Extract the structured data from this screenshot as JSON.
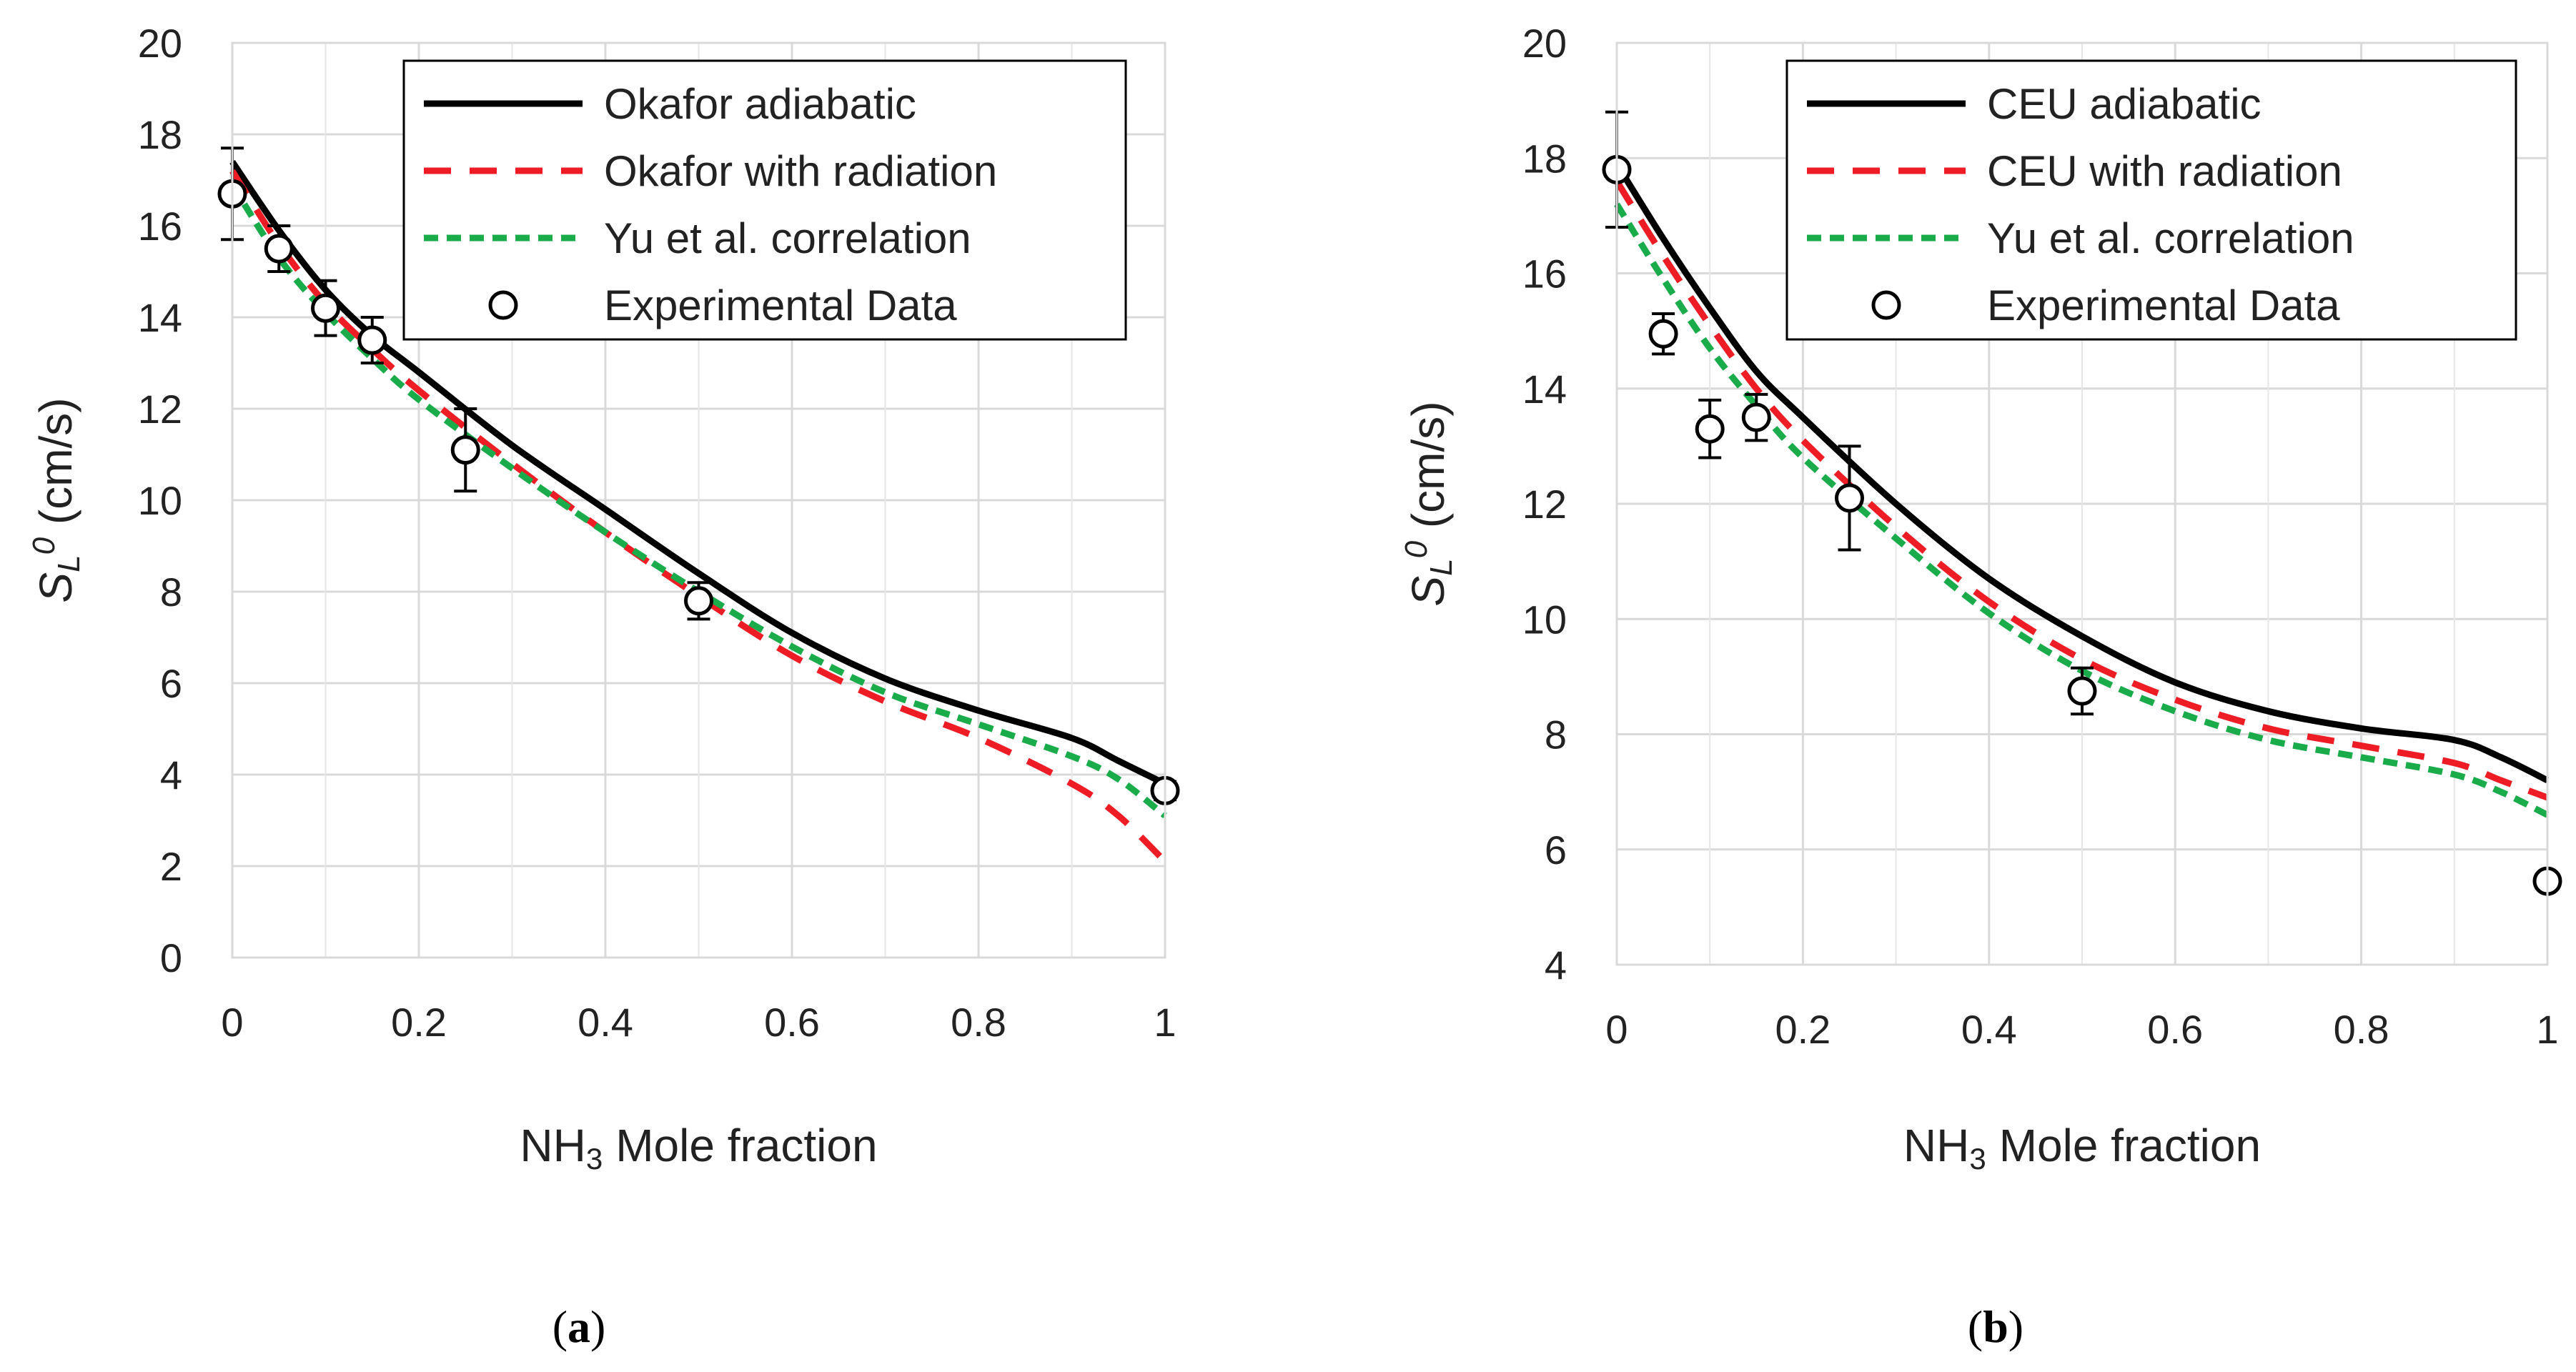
{
  "chart_data": [
    {
      "id": "a",
      "type": "line",
      "caption_open": "(",
      "caption_letter": "a",
      "caption_close": ")",
      "xlabel": "Mole fraction",
      "xlabel_prefix": "NH",
      "xlabel_sub": "3",
      "ylabel_main": "S",
      "ylabel_sub": "L",
      "ylabel_sup": "0",
      "ylabel_unit": " (cm/s)",
      "xlim": [
        0,
        1
      ],
      "ylim": [
        0,
        20
      ],
      "xticks": [
        0,
        0.2,
        0.4,
        0.6,
        0.8,
        1
      ],
      "xtick_labels": [
        "0",
        "0.2",
        "0.4",
        "0.6",
        "0.8",
        "1"
      ],
      "yticks": [
        0,
        2,
        4,
        6,
        8,
        10,
        12,
        14,
        16,
        18,
        20
      ],
      "ytick_labels": [
        "0",
        "2",
        "4",
        "6",
        "8",
        "10",
        "12",
        "14",
        "16",
        "18",
        "20"
      ],
      "grid": true,
      "legend_position": "top-right",
      "series": [
        {
          "name": "Okafor adiabatic",
          "style": "solid",
          "color": "#000000",
          "x": [
            0,
            0.05,
            0.1,
            0.15,
            0.2,
            0.3,
            0.4,
            0.5,
            0.6,
            0.7,
            0.8,
            0.9,
            0.95,
            1.0
          ],
          "y": [
            17.4,
            15.9,
            14.6,
            13.6,
            12.8,
            11.2,
            9.8,
            8.4,
            7.1,
            6.1,
            5.4,
            4.8,
            4.3,
            3.8
          ]
        },
        {
          "name": "Okafor with radiation",
          "style": "dash",
          "color": "#ee1c24",
          "x": [
            0,
            0.05,
            0.1,
            0.15,
            0.2,
            0.3,
            0.4,
            0.5,
            0.6,
            0.7,
            0.8,
            0.9,
            0.95,
            1.0
          ],
          "y": [
            17.2,
            15.6,
            14.3,
            13.3,
            12.4,
            10.8,
            9.3,
            7.9,
            6.6,
            5.6,
            4.8,
            3.8,
            3.1,
            2.1
          ]
        },
        {
          "name": "Yu et al. correlation",
          "style": "shortdash",
          "color": "#1aab4b",
          "x": [
            0,
            0.05,
            0.1,
            0.15,
            0.2,
            0.3,
            0.4,
            0.5,
            0.6,
            0.7,
            0.8,
            0.9,
            0.95,
            1.0
          ],
          "y": [
            16.9,
            15.3,
            14.1,
            13.1,
            12.2,
            10.7,
            9.3,
            8.0,
            6.8,
            5.8,
            5.1,
            4.4,
            3.9,
            3.1
          ]
        },
        {
          "name": "Experimental Data",
          "style": "marker",
          "color": "#000000",
          "x": [
            0,
            0.05,
            0.1,
            0.15,
            0.25,
            0.5,
            1.0
          ],
          "y": [
            16.7,
            15.5,
            14.2,
            13.5,
            11.1,
            7.8,
            3.65
          ],
          "err": [
            1.0,
            0.5,
            0.6,
            0.5,
            0.9,
            0.4,
            0.2
          ]
        }
      ]
    },
    {
      "id": "b",
      "type": "line",
      "caption_open": "(",
      "caption_letter": "b",
      "caption_close": ")",
      "xlabel": "Mole fraction",
      "xlabel_prefix": "NH",
      "xlabel_sub": "3",
      "ylabel_main": "S",
      "ylabel_sub": "L",
      "ylabel_sup": "0",
      "ylabel_unit": " (cm/s)",
      "xlim": [
        0,
        1
      ],
      "ylim": [
        4,
        20
      ],
      "xticks": [
        0,
        0.2,
        0.4,
        0.6,
        0.8,
        1
      ],
      "xtick_labels": [
        "0",
        "0.2",
        "0.4",
        "0.6",
        "0.8",
        "1"
      ],
      "yticks": [
        4,
        6,
        8,
        10,
        12,
        14,
        16,
        18,
        20
      ],
      "ytick_labels": [
        "4",
        "6",
        "8",
        "10",
        "12",
        "14",
        "16",
        "18",
        "20"
      ],
      "grid": true,
      "legend_position": "top-right",
      "series": [
        {
          "name": "CEU adiabatic",
          "style": "solid",
          "color": "#000000",
          "x": [
            0,
            0.05,
            0.1,
            0.15,
            0.2,
            0.3,
            0.4,
            0.5,
            0.6,
            0.7,
            0.8,
            0.9,
            0.95,
            1.0
          ],
          "y": [
            17.9,
            16.6,
            15.4,
            14.3,
            13.5,
            12.0,
            10.7,
            9.7,
            8.9,
            8.4,
            8.1,
            7.9,
            7.6,
            7.2
          ]
        },
        {
          "name": "CEU with radiation",
          "style": "dash",
          "color": "#ee1c24",
          "x": [
            0,
            0.05,
            0.1,
            0.15,
            0.2,
            0.3,
            0.4,
            0.5,
            0.6,
            0.7,
            0.8,
            0.9,
            0.95,
            1.0
          ],
          "y": [
            17.6,
            16.3,
            15.1,
            14.0,
            13.1,
            11.6,
            10.3,
            9.3,
            8.6,
            8.1,
            7.8,
            7.5,
            7.2,
            6.9
          ]
        },
        {
          "name": "Yu et al. correlation",
          "style": "shortdash",
          "color": "#1aab4b",
          "x": [
            0,
            0.05,
            0.1,
            0.15,
            0.2,
            0.3,
            0.4,
            0.5,
            0.6,
            0.7,
            0.8,
            0.9,
            0.95,
            1.0
          ],
          "y": [
            17.2,
            15.9,
            14.7,
            13.7,
            12.8,
            11.4,
            10.1,
            9.1,
            8.4,
            7.9,
            7.6,
            7.3,
            7.0,
            6.6
          ]
        },
        {
          "name": "Experimental Data",
          "style": "marker",
          "color": "#000000",
          "x": [
            0,
            0.05,
            0.1,
            0.15,
            0.25,
            0.5,
            1.0
          ],
          "y": [
            17.8,
            14.95,
            13.3,
            13.5,
            12.1,
            8.75,
            5.45
          ],
          "err": [
            1.0,
            0.35,
            0.5,
            0.4,
            0.9,
            0.4,
            0.1
          ]
        }
      ]
    }
  ]
}
